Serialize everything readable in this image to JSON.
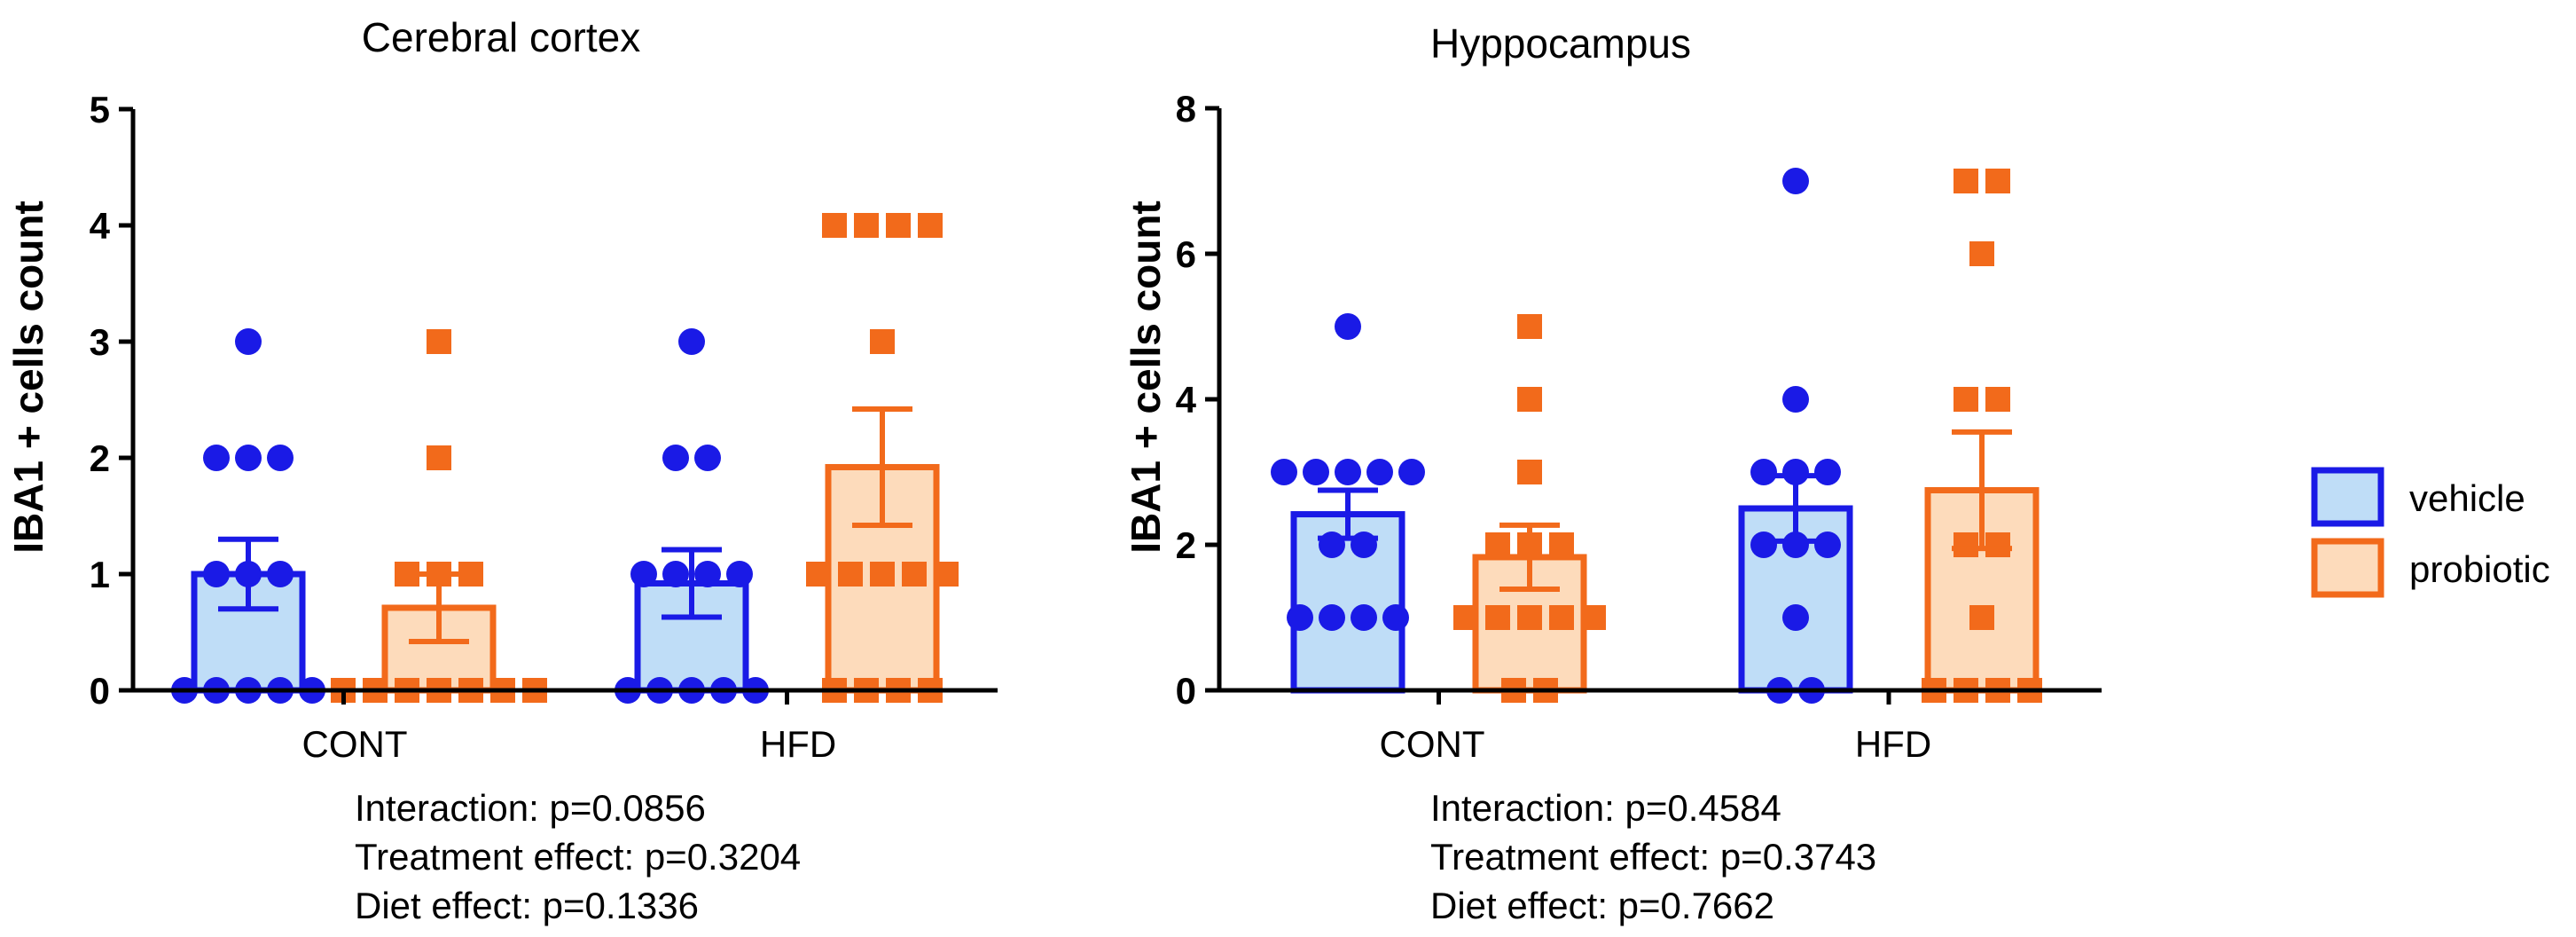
{
  "chart_data": [
    {
      "type": "bar",
      "title": "Cerebral cortex",
      "ylabel": "IBA1 + cells count",
      "ylim": [
        0,
        5
      ],
      "yticks": [
        0,
        1,
        2,
        3,
        4,
        5
      ],
      "categories": [
        "CONT",
        "HFD"
      ],
      "series": [
        {
          "name": "vehicle",
          "means": [
            1.0,
            0.92
          ],
          "sem": [
            0.3,
            0.29
          ],
          "points": [
            [
              0,
              0,
              0,
              0,
              0,
              1,
              1,
              1,
              2,
              2,
              2,
              3
            ],
            [
              0,
              0,
              0,
              0,
              0,
              1,
              1,
              1,
              1,
              2,
              2,
              3
            ]
          ]
        },
        {
          "name": "probiotic",
          "means": [
            0.71,
            1.92
          ],
          "sem": [
            0.29,
            0.5
          ],
          "points": [
            [
              0,
              0,
              0,
              0,
              0,
              0,
              0,
              1,
              1,
              1,
              2,
              3
            ],
            [
              0,
              0,
              0,
              0,
              1,
              1,
              1,
              1,
              1,
              3,
              4,
              4,
              4,
              4
            ]
          ]
        }
      ],
      "stats": [
        "Interaction: p=0.0856",
        "Treatment effect: p=0.3204",
        "Diet effect: p=0.1336"
      ]
    },
    {
      "type": "bar",
      "title": "Hyppocampus",
      "ylabel": "IBA1 + cells count",
      "ylim": [
        0,
        8
      ],
      "yticks": [
        0,
        2,
        4,
        6,
        8
      ],
      "categories": [
        "CONT",
        "HFD"
      ],
      "series": [
        {
          "name": "vehicle",
          "means": [
            2.42,
            2.5
          ],
          "sem": [
            0.33,
            0.45
          ],
          "points": [
            [
              1,
              1,
              1,
              1,
              2,
              2,
              3,
              3,
              3,
              3,
              3,
              5
            ],
            [
              0,
              0,
              1,
              2,
              2,
              2,
              3,
              3,
              3,
              4,
              7
            ]
          ]
        },
        {
          "name": "probiotic",
          "means": [
            1.83,
            2.75
          ],
          "sem": [
            0.44,
            0.8
          ],
          "points": [
            [
              0,
              0,
              1,
              1,
              1,
              1,
              1,
              2,
              2,
              2,
              3,
              4,
              5
            ],
            [
              0,
              0,
              0,
              0,
              1,
              2,
              2,
              4,
              4,
              6,
              7,
              7
            ]
          ]
        }
      ],
      "stats": [
        "Interaction: p=0.4584",
        "Treatment effect: p=0.3743",
        "Diet effect: p=0.7662"
      ]
    }
  ],
  "legend": {
    "entries": [
      "vehicle",
      "probiotic"
    ],
    "position": "right"
  },
  "colors": {
    "vehicle_stroke": "#1A1AE6",
    "vehicle_fill": "#BFDDF7",
    "probiotic_stroke": "#F26A1B",
    "probiotic_fill": "#FDDBBB",
    "axis": "#000000"
  }
}
